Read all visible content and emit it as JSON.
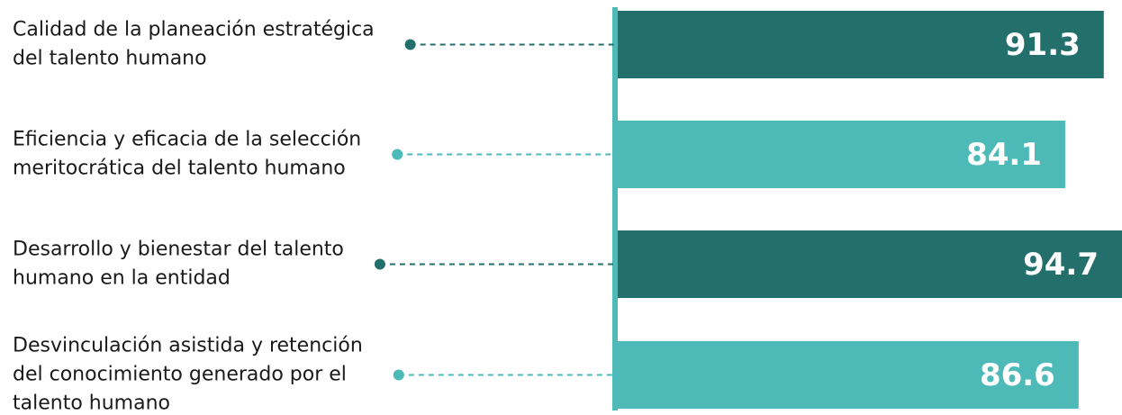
{
  "chart_data": {
    "type": "bar",
    "orientation": "horizontal",
    "categories": [
      [
        "Calidad de la planeación estratégica",
        "del talento humano"
      ],
      [
        "Eficiencia y eficacia de la selección",
        "meritocrática del talento humano"
      ],
      [
        "Desarrollo y bienestar del talento",
        "humano en la entidad"
      ],
      [
        "Desvinculación asistida y retención",
        "del conocimiento generado por el",
        "talento humano"
      ]
    ],
    "values": [
      91.3,
      84.1,
      94.7,
      86.6
    ],
    "colors": [
      "#236f6c",
      "#4dbab8",
      "#236f6c",
      "#4dbab8"
    ]
  }
}
